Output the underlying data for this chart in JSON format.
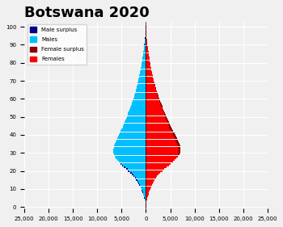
{
  "title": "Botswana 2020",
  "title_fontsize": 13,
  "x_ticks": [
    -25000,
    -20000,
    -15000,
    -10000,
    -5000,
    0,
    5000,
    10000,
    15000,
    20000,
    25000
  ],
  "x_tick_labels": [
    "25,000",
    "20,000",
    "15,000",
    "10,000",
    "5,000",
    "0",
    "5,000",
    "10,000",
    "15,000",
    "20,000",
    "25,000"
  ],
  "xlim": [
    -25000,
    25000
  ],
  "legend_labels": [
    "Male surplus",
    "Males",
    "Female surplus",
    "Females"
  ],
  "legend_colors": [
    "#00008B",
    "#00BFFF",
    "#8B0000",
    "#FF0000"
  ],
  "color_male": "#00BFFF",
  "color_female": "#FF0000",
  "color_male_surplus": "#00008B",
  "color_female_surplus": "#8B0000",
  "bg_color": "#F0F0F0",
  "grid_color": "#FFFFFF",
  "ages": [
    100,
    99,
    98,
    97,
    96,
    95,
    94,
    93,
    92,
    91,
    90,
    89,
    88,
    87,
    86,
    85,
    84,
    83,
    82,
    81,
    80,
    79,
    78,
    77,
    76,
    75,
    74,
    73,
    72,
    71,
    70,
    69,
    68,
    67,
    66,
    65,
    64,
    63,
    62,
    61,
    60,
    59,
    58,
    57,
    56,
    55,
    54,
    53,
    52,
    51,
    50,
    49,
    48,
    47,
    46,
    45,
    44,
    43,
    42,
    41,
    40,
    39,
    38,
    37,
    36,
    35,
    34,
    33,
    32,
    31,
    30,
    29,
    28,
    27,
    26,
    25,
    24,
    23,
    22,
    21,
    20,
    19,
    18,
    17,
    16,
    15,
    14,
    13,
    12,
    11,
    10,
    9,
    8,
    7,
    6,
    5,
    4,
    3,
    2,
    1,
    0
  ],
  "males": [
    30,
    40,
    55,
    75,
    100,
    130,
    165,
    200,
    240,
    285,
    335,
    380,
    430,
    480,
    530,
    580,
    630,
    685,
    740,
    800,
    860,
    925,
    990,
    1060,
    1130,
    1205,
    1285,
    1365,
    1445,
    1530,
    1615,
    1700,
    1785,
    1875,
    1965,
    2060,
    2155,
    2260,
    2370,
    2490,
    2610,
    2730,
    2860,
    2990,
    3120,
    3260,
    3400,
    3540,
    3680,
    3820,
    3950,
    4090,
    4230,
    4370,
    4510,
    4660,
    4820,
    4990,
    5170,
    5360,
    5550,
    5740,
    5920,
    6100,
    6270,
    6420,
    6550,
    6640,
    6700,
    6720,
    6690,
    6600,
    6450,
    6230,
    5960,
    5640,
    5310,
    4940,
    4550,
    4130,
    3690,
    3270,
    2900,
    2580,
    2280,
    2020,
    1780,
    1560,
    1350,
    1160,
    990,
    840,
    700,
    570,
    450,
    340,
    240,
    155,
    90,
    40,
    10
  ],
  "females": [
    25,
    35,
    48,
    65,
    88,
    115,
    148,
    185,
    228,
    275,
    325,
    375,
    425,
    475,
    525,
    578,
    632,
    688,
    745,
    805,
    865,
    930,
    995,
    1065,
    1140,
    1215,
    1295,
    1380,
    1465,
    1555,
    1645,
    1740,
    1835,
    1935,
    2040,
    2145,
    2260,
    2380,
    2510,
    2645,
    2785,
    2920,
    3060,
    3200,
    3340,
    3490,
    3645,
    3800,
    3960,
    4120,
    4280,
    4440,
    4600,
    4760,
    4920,
    5090,
    5265,
    5450,
    5640,
    5835,
    6030,
    6225,
    6415,
    6595,
    6760,
    6905,
    7020,
    7090,
    7110,
    7080,
    6990,
    6830,
    6600,
    6310,
    5960,
    5570,
    5150,
    4720,
    4260,
    3800,
    3360,
    2970,
    2630,
    2330,
    2060,
    1820,
    1600,
    1400,
    1220,
    1050,
    900,
    760,
    630,
    510,
    400,
    300,
    210,
    130,
    70,
    30,
    8
  ],
  "bar_height": 0.9
}
